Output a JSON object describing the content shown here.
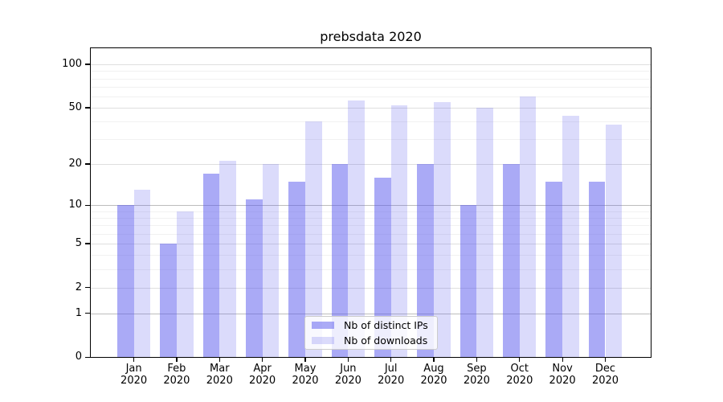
{
  "chart_data": {
    "type": "bar",
    "title": "prebsdata 2020",
    "x_tick_months": [
      "Jan",
      "Feb",
      "Mar",
      "Apr",
      "May",
      "Jun",
      "Jul",
      "Aug",
      "Sep",
      "Oct",
      "Nov",
      "Dec"
    ],
    "x_tick_year": "2020",
    "y_scale": "symlog_ln1p",
    "ylim": [
      0,
      130
    ],
    "y_ticks_labeled": [
      0,
      1,
      2,
      5,
      10,
      20,
      50,
      100
    ],
    "y_ticks_minor": [
      3,
      4,
      6,
      7,
      8,
      9,
      30,
      40,
      60,
      70,
      80,
      90
    ],
    "grid": true,
    "legend_position": "bottom-center",
    "series": [
      {
        "name": "Nb of distinct IPs",
        "color": "rgba(85,85,238,0.50)",
        "values": [
          10,
          5,
          17,
          11,
          15,
          20,
          16,
          20,
          10,
          20,
          15,
          15
        ]
      },
      {
        "name": "Nb of downloads",
        "color": "rgba(85,85,238,0.21)",
        "values": [
          13,
          9,
          21,
          20,
          40,
          56,
          52,
          55,
          50,
          60,
          44,
          38
        ]
      }
    ]
  },
  "colors": {
    "bar_base": "#5555ee",
    "spine": "#000000",
    "grid_major": "#dfdfdf",
    "grid_decade": "#bdbdbd",
    "grid_minor": "#f1f1f1",
    "legend_border": "#cccccc"
  }
}
